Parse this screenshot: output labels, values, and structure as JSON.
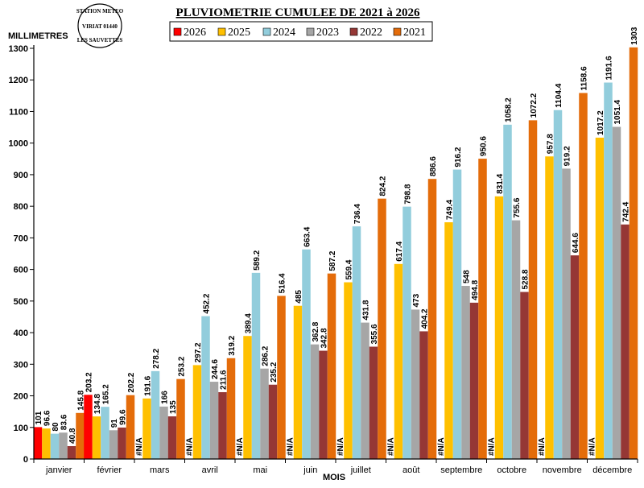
{
  "stamp": {
    "line1": "STATION METEO",
    "line2": "VIRIAT 01440",
    "line3": "LES SAUVETTES"
  },
  "chart_data": {
    "type": "bar",
    "title": "PLUVIOMETRIE CUMULEE DE 2021 à 2026",
    "ylabel": "MILLIMETRES",
    "xlabel": "MOIS",
    "ylim": [
      0,
      1300
    ],
    "yticks": [
      0,
      100,
      200,
      300,
      400,
      500,
      600,
      700,
      800,
      900,
      1000,
      1100,
      1200,
      1300
    ],
    "categories": [
      "janvier",
      "février",
      "mars",
      "avril",
      "mai",
      "juin",
      "juillet",
      "août",
      "septembre",
      "octobre",
      "novembre",
      "décembre"
    ],
    "na_label": "#N/A",
    "legend_order": [
      "2026",
      "2025",
      "2024",
      "2023",
      "2022",
      "2021"
    ],
    "series": [
      {
        "name": "2026",
        "color": "#ff0000",
        "values": [
          101,
          203.2,
          null,
          null,
          null,
          null,
          null,
          null,
          null,
          null,
          null,
          null
        ]
      },
      {
        "name": "2025",
        "color": "#ffc000",
        "values": [
          96.6,
          134.8,
          191.6,
          297.2,
          389.4,
          485,
          559.4,
          617.4,
          749.4,
          831.4,
          957.8,
          1017.2
        ]
      },
      {
        "name": "2024",
        "color": "#92cddc",
        "values": [
          80,
          165.2,
          278.2,
          452.2,
          589.2,
          663.4,
          736.4,
          798.8,
          916.2,
          1058.2,
          1104.4,
          1191.6
        ]
      },
      {
        "name": "2023",
        "color": "#a6a6a6",
        "values": [
          83.6,
          91,
          166,
          244.6,
          286.2,
          362.8,
          431.8,
          473,
          548,
          755.6,
          919.2,
          1051.4
        ]
      },
      {
        "name": "2022",
        "color": "#953735",
        "values": [
          40.8,
          99.6,
          135,
          211.6,
          235.2,
          342.8,
          355.6,
          404.2,
          494.8,
          528.8,
          644.6,
          742.4
        ]
      },
      {
        "name": "2021",
        "color": "#e46c0a",
        "values": [
          145.8,
          202.2,
          253.2,
          319.2,
          516.4,
          587.2,
          824.2,
          886.6,
          950.6,
          1072.2,
          1158.6,
          1303
        ]
      }
    ]
  }
}
